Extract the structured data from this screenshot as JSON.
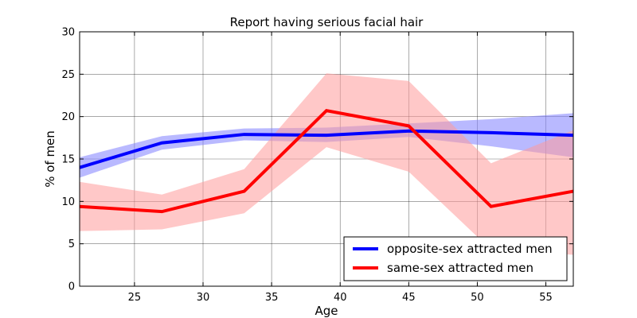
{
  "chart_data": {
    "type": "line",
    "title": "Report having serious facial hair",
    "xlabel": "Age",
    "ylabel": "%  of men",
    "xlim": [
      21,
      57
    ],
    "ylim": [
      0,
      30
    ],
    "xticks": [
      25,
      30,
      35,
      40,
      45,
      50,
      55
    ],
    "yticks": [
      0,
      5,
      10,
      15,
      20,
      25,
      30
    ],
    "grid": true,
    "legend_position": "lower-right",
    "series": [
      {
        "name": "opposite-sex attracted men",
        "color": "#0000ff",
        "band_color": "#8080ff",
        "x": [
          21,
          27,
          33,
          39,
          45,
          51,
          57
        ],
        "y": [
          14.0,
          16.9,
          17.9,
          17.8,
          18.3,
          18.1,
          17.8
        ],
        "lower": [
          12.8,
          16.1,
          17.2,
          17.0,
          17.6,
          16.5,
          15.2
        ],
        "upper": [
          15.2,
          17.7,
          18.6,
          18.7,
          19.2,
          19.7,
          20.4
        ]
      },
      {
        "name": "same-sex attracted men",
        "color": "#ff0000",
        "band_color": "#ff9a9a",
        "x": [
          21,
          27,
          33,
          39,
          45,
          51,
          57
        ],
        "y": [
          9.4,
          8.8,
          11.2,
          20.7,
          18.9,
          9.4,
          11.2
        ],
        "lower": [
          6.5,
          6.7,
          8.6,
          16.4,
          13.5,
          4.3,
          3.7
        ],
        "upper": [
          12.3,
          10.8,
          13.8,
          25.1,
          24.2,
          14.5,
          18.4
        ]
      }
    ]
  }
}
